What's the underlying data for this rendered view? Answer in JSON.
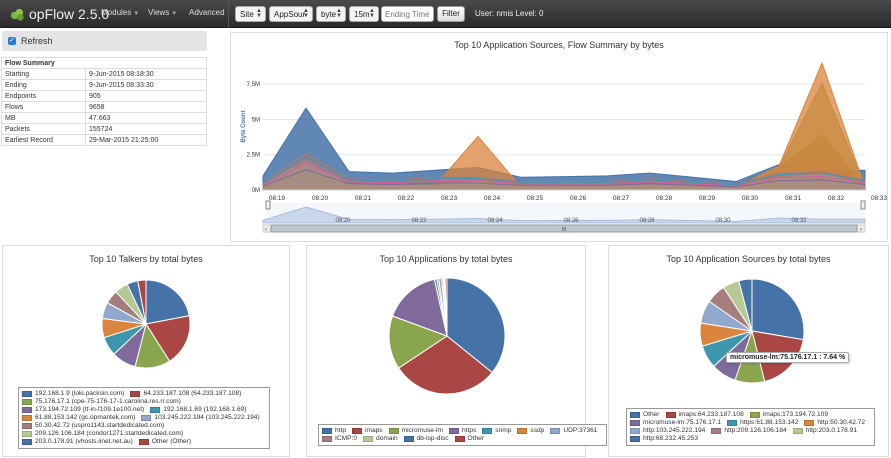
{
  "app": {
    "title": "opFlow 2.5.0",
    "user_text": "User: nmis Level: 0"
  },
  "nav": {
    "modules": "Modules",
    "views": "Views",
    "advanced": "Advanced"
  },
  "filters": {
    "site": "Site",
    "source": "AppSour",
    "unit": "byte",
    "period": "15m",
    "ending_placeholder": "Ending Time",
    "filter_button": "Filter"
  },
  "refresh": {
    "label": "Refresh",
    "checked": true
  },
  "summary": {
    "title": "Flow Summary",
    "rows": [
      {
        "k": "Starting",
        "v": "9-Jun-2015 08:18:30"
      },
      {
        "k": "Ending",
        "v": "9-Jun-2015 08:33:30"
      },
      {
        "k": "Endpoints",
        "v": "905"
      },
      {
        "k": "Flows",
        "v": "9658"
      },
      {
        "k": "MB",
        "v": "47.663"
      },
      {
        "k": "Packets",
        "v": "155724"
      },
      {
        "k": "Earliest Record",
        "v": "29-Mar-2015 21:25:00"
      }
    ]
  },
  "colors": {
    "blue": "#4572a7",
    "red": "#aa4643",
    "green": "#89a54e",
    "purple": "#80699b",
    "teal": "#3d96ae",
    "orange": "#db843d",
    "lightblue": "#92a8cd",
    "pink": "#a47d7c",
    "lightgreen": "#b5ca92",
    "gray": "#cccccc"
  },
  "chart_data": [
    {
      "type": "area",
      "title": "Top 10 Application Sources, Flow Summary by bytes",
      "ylabel": "Byte Count",
      "x": [
        "08:19",
        "08:20",
        "08:21",
        "08:22",
        "08:23",
        "08:24",
        "08:25",
        "08:26",
        "08:27",
        "08:28",
        "08:29",
        "08:30",
        "08:31",
        "08:32",
        "08:33"
      ],
      "y_ticks": [
        "0M",
        "2.5M",
        "5M",
        "7.5M"
      ],
      "ylim": [
        0,
        9000000
      ],
      "navigator_ticks": [
        "08:20",
        "08:22",
        "08:24",
        "08:26",
        "08:28",
        "08:30",
        "08:32"
      ],
      "navigator_handle": "III",
      "series": [
        {
          "color": "#4572a7",
          "values": [
            1000000,
            5800000,
            1300000,
            1200000,
            1400000,
            1600000,
            900000,
            950000,
            1000000,
            1200000,
            900000,
            600000,
            1800000,
            1400000,
            1400000
          ]
        },
        {
          "color": "#aa4643",
          "values": [
            200000,
            300000,
            200000,
            200000,
            200000,
            250000,
            150000,
            200000,
            200000,
            300000,
            200000,
            300000,
            1600000,
            3900000,
            300000
          ]
        },
        {
          "color": "#89a54e",
          "values": [
            300000,
            1400000,
            300000,
            300000,
            300000,
            900000,
            200000,
            200000,
            200000,
            300000,
            200000,
            200000,
            1600000,
            7600000,
            200000
          ]
        },
        {
          "color": "#db843d",
          "values": [
            200000,
            400000,
            200000,
            200000,
            300000,
            3800000,
            200000,
            200000,
            200000,
            300000,
            200000,
            200000,
            1700000,
            9000000,
            200000
          ]
        },
        {
          "color": "#b5ca92",
          "values": [
            400000,
            2000000,
            400000,
            300000,
            300000,
            600000,
            300000,
            300000,
            300000,
            400000,
            300000,
            200000,
            800000,
            1200000,
            300000
          ]
        },
        {
          "color": "#a47d7c",
          "values": [
            500000,
            2600000,
            800000,
            700000,
            900000,
            900000,
            600000,
            600000,
            600000,
            800000,
            600000,
            400000,
            1200000,
            1300000,
            700000
          ]
        }
      ]
    },
    {
      "type": "pie",
      "title": "Top 10 Talkers by total bytes",
      "slices": [
        {
          "label": "192.168.1.9 (loki.packsin.com)",
          "value": 22,
          "color": "#4572a7"
        },
        {
          "label": "64.233.187.108 (64.233.187.108)",
          "value": 19,
          "color": "#aa4643"
        },
        {
          "label": "75.176.17.1 (cpe-75-176-17-1.carolina.res.rr.com)",
          "value": 13,
          "color": "#89a54e"
        },
        {
          "label": "173.194.72.109 (tf-in-f109.1e100.net)",
          "value": 9,
          "color": "#80699b"
        },
        {
          "label": "192.168.1.69 (192.168.1.69)",
          "value": 7,
          "color": "#3d96ae"
        },
        {
          "label": "61.88.153.142 (gc.opmantek.com)",
          "value": 7,
          "color": "#db843d"
        },
        {
          "label": "103.245.222.194 (103.245.222.194)",
          "value": 6,
          "color": "#92a8cd"
        },
        {
          "label": "50.30.42.72 (uspro1143.startdedicated.com)",
          "value": 5,
          "color": "#a47d7c"
        },
        {
          "label": "209.126.106.184 (condor1271.startdedicated.com)",
          "value": 5,
          "color": "#b5ca92"
        },
        {
          "label": "203.0.178.91 (vhosts.iinet.net.au)",
          "value": 4,
          "color": "#4572a7"
        },
        {
          "label": "Other (Other)",
          "value": 3,
          "color": "#aa4643"
        }
      ]
    },
    {
      "type": "pie",
      "title": "Top 10 Applications by total bytes",
      "slices": [
        {
          "label": "http",
          "value": 36,
          "color": "#4572a7"
        },
        {
          "label": "imaps",
          "value": 30,
          "color": "#aa4643"
        },
        {
          "label": "micromuse-lm",
          "value": 15,
          "color": "#89a54e"
        },
        {
          "label": "https",
          "value": 16,
          "color": "#80699b"
        },
        {
          "label": "snmp",
          "value": 0.7,
          "color": "#3d96ae"
        },
        {
          "label": "ssdp",
          "value": 0.5,
          "color": "#db843d"
        },
        {
          "label": "UDP:37361",
          "value": 0.8,
          "color": "#92a8cd"
        },
        {
          "label": "ICMP:0",
          "value": 0.4,
          "color": "#a47d7c"
        },
        {
          "label": "domain",
          "value": 0.3,
          "color": "#b5ca92"
        },
        {
          "label": "db-lsp-disc",
          "value": 0.3,
          "color": "#4572a7"
        },
        {
          "label": "Other",
          "value": 0.5,
          "color": "#aa4643"
        }
      ]
    },
    {
      "type": "pie",
      "title": "Top 10 Application Sources by total bytes",
      "tooltip": "micromuse-lm:75.176.17.1 : 7.64 %",
      "slices": [
        {
          "label": "Other",
          "value": 27,
          "color": "#4572a7"
        },
        {
          "label": "imaps:64.233.187.108",
          "value": 18,
          "color": "#aa4643"
        },
        {
          "label": "imaps:173.194.72.109",
          "value": 9,
          "color": "#89a54e"
        },
        {
          "label": "micromuse-lm:75.176.17.1",
          "value": 7.64,
          "color": "#80699b"
        },
        {
          "label": "https:61.88.153.142",
          "value": 7,
          "color": "#3d96ae"
        },
        {
          "label": "http:50.30.42.72",
          "value": 7,
          "color": "#db843d"
        },
        {
          "label": "http:103.245.222.194",
          "value": 7,
          "color": "#92a8cd"
        },
        {
          "label": "http:209.126.106.184",
          "value": 6,
          "color": "#a47d7c"
        },
        {
          "label": "http:203.0.178.91",
          "value": 5,
          "color": "#b5ca92"
        },
        {
          "label": "http:68.232.45.253",
          "value": 4,
          "color": "#4572a7"
        }
      ]
    }
  ],
  "legends": {
    "talkers": [
      [
        "192.168.1.9 (loki.packsin.com)",
        "64.233.187.108 (64.233.187.108)"
      ],
      [
        "75.176.17.1 (cpe-75-176-17-1.carolina.res.rr.com)"
      ],
      [
        "173.194.72.109 (tf-in-f109.1e100.net)",
        "192.168.1.69 (192.168.1.69)"
      ],
      [
        "61.88.153.142 (gc.opmantek.com)",
        "103.245.222.194 (103.245.222.194)"
      ],
      [
        "50.30.42.72 (uspro1143.startdedicated.com)"
      ],
      [
        "209.126.106.184 (condor1271.startdedicated.com)"
      ],
      [
        "203.0.178.91 (vhosts.iinet.net.au)",
        "Other (Other)"
      ]
    ],
    "apps": [
      [
        "http",
        "imaps",
        "micromuse-lm",
        "https",
        "snmp",
        "ssdp",
        "UDP:37361"
      ],
      [
        "ICMP:0",
        "domain",
        "db-lsp-disc",
        "Other"
      ]
    ],
    "sources": [
      [
        "Other",
        "imaps:64.233.187.108",
        "imaps:173.194.72.109"
      ],
      [
        "micromuse-lm:75.176.17.1",
        "https:61.88.153.142",
        "http:50.30.42.72"
      ],
      [
        "http:103.245.222.194",
        "http:209.126.106.184",
        "http:203.0.178.91"
      ],
      [
        "http:68.232.45.253"
      ]
    ]
  }
}
